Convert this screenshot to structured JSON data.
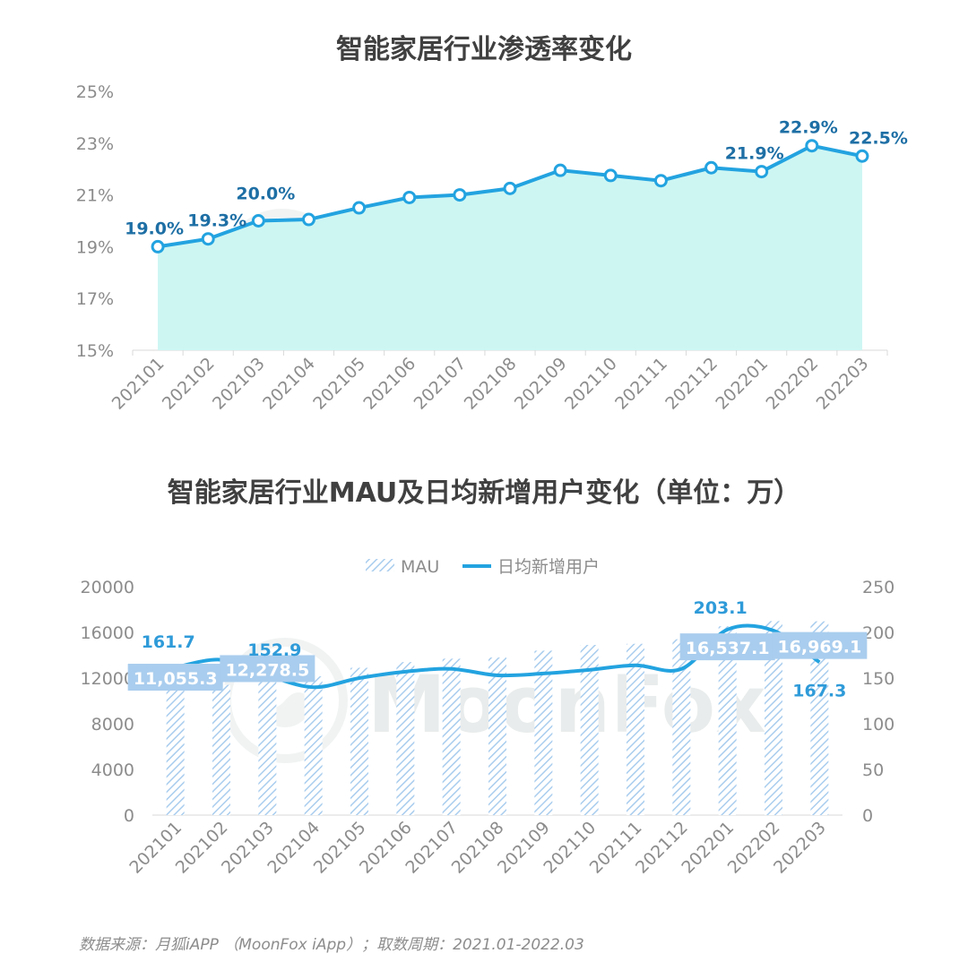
{
  "titles": {
    "chart1": "智能家居行业渗透率变化",
    "chart2": "智能家居行业MAU及日均新增用户变化（单位：万）"
  },
  "watermark": "MoonFox",
  "source": "数据来源：月狐iAPP （MoonFox iApp）；取数周期：2021.01-2022.03",
  "colors": {
    "area": "#cdf6f3",
    "line": "#23a3e0",
    "bar": "#a9cdee",
    "label1": "#1e6fa5",
    "label2": "#2f9bd9",
    "labelBox": "#a9cdee"
  },
  "chart_data": [
    {
      "type": "area",
      "title": "智能家居行业渗透率变化",
      "categories": [
        "202101",
        "202102",
        "202103",
        "202104",
        "202105",
        "202106",
        "202107",
        "202108",
        "202109",
        "202110",
        "202111",
        "202112",
        "202201",
        "202202",
        "202203"
      ],
      "values": [
        19.0,
        19.3,
        20.0,
        20.05,
        20.5,
        20.9,
        21.0,
        21.25,
        21.95,
        21.75,
        21.55,
        22.05,
        21.9,
        22.9,
        22.5
      ],
      "labels": [
        {
          "index": 0,
          "text": "19.0%"
        },
        {
          "index": 1,
          "text": "19.3%"
        },
        {
          "index": 2,
          "text": "20.0%"
        },
        {
          "index": 12,
          "text": "21.9%"
        },
        {
          "index": 13,
          "text": "22.9%"
        },
        {
          "index": 14,
          "text": "22.5%"
        }
      ],
      "ylim": [
        15,
        25
      ],
      "yticks": [
        "15%",
        "17%",
        "19%",
        "21%",
        "23%",
        "25%"
      ]
    },
    {
      "type": "bar",
      "title": "智能家居行业MAU及日均新增用户变化（单位：万）",
      "categories": [
        "202101",
        "202102",
        "202103",
        "202104",
        "202105",
        "202106",
        "202107",
        "202108",
        "202109",
        "202110",
        "202111",
        "202112",
        "202201",
        "202202",
        "202203"
      ],
      "series": [
        {
          "name": "MAU",
          "type": "bar",
          "axis": "left",
          "values": [
            11055.3,
            11400,
            12278.5,
            12150,
            12900,
            13400,
            13700,
            13800,
            14400,
            14900,
            15000,
            15400,
            16537.1,
            16990,
            16969.1
          ]
        },
        {
          "name": "日均新增用户",
          "type": "line",
          "axis": "right",
          "values": [
            161.7,
            170,
            152.9,
            140,
            150,
            157,
            160,
            153,
            155,
            159,
            164,
            160,
            203.1,
            202,
            167.3
          ]
        }
      ],
      "labels": [
        {
          "series": 0,
          "index": 0,
          "text": "11,055.3"
        },
        {
          "series": 0,
          "index": 2,
          "text": "12,278.5"
        },
        {
          "series": 0,
          "index": 12,
          "text": "16,537.1"
        },
        {
          "series": 0,
          "index": 14,
          "text": "16,969.1"
        },
        {
          "series": 1,
          "index": 0,
          "text": "161.7"
        },
        {
          "series": 1,
          "index": 2,
          "text": "152.9"
        },
        {
          "series": 1,
          "index": 12,
          "text": "203.1"
        },
        {
          "series": 1,
          "index": 14,
          "text": "167.3"
        }
      ],
      "ylim_left": [
        0,
        20000
      ],
      "ylim_right": [
        0,
        250
      ],
      "yticks_left": [
        "0",
        "4000",
        "8000",
        "12000",
        "16000",
        "20000"
      ],
      "yticks_right": [
        "0",
        "50",
        "100",
        "150",
        "200",
        "250"
      ],
      "legend_position": "top-center"
    }
  ]
}
